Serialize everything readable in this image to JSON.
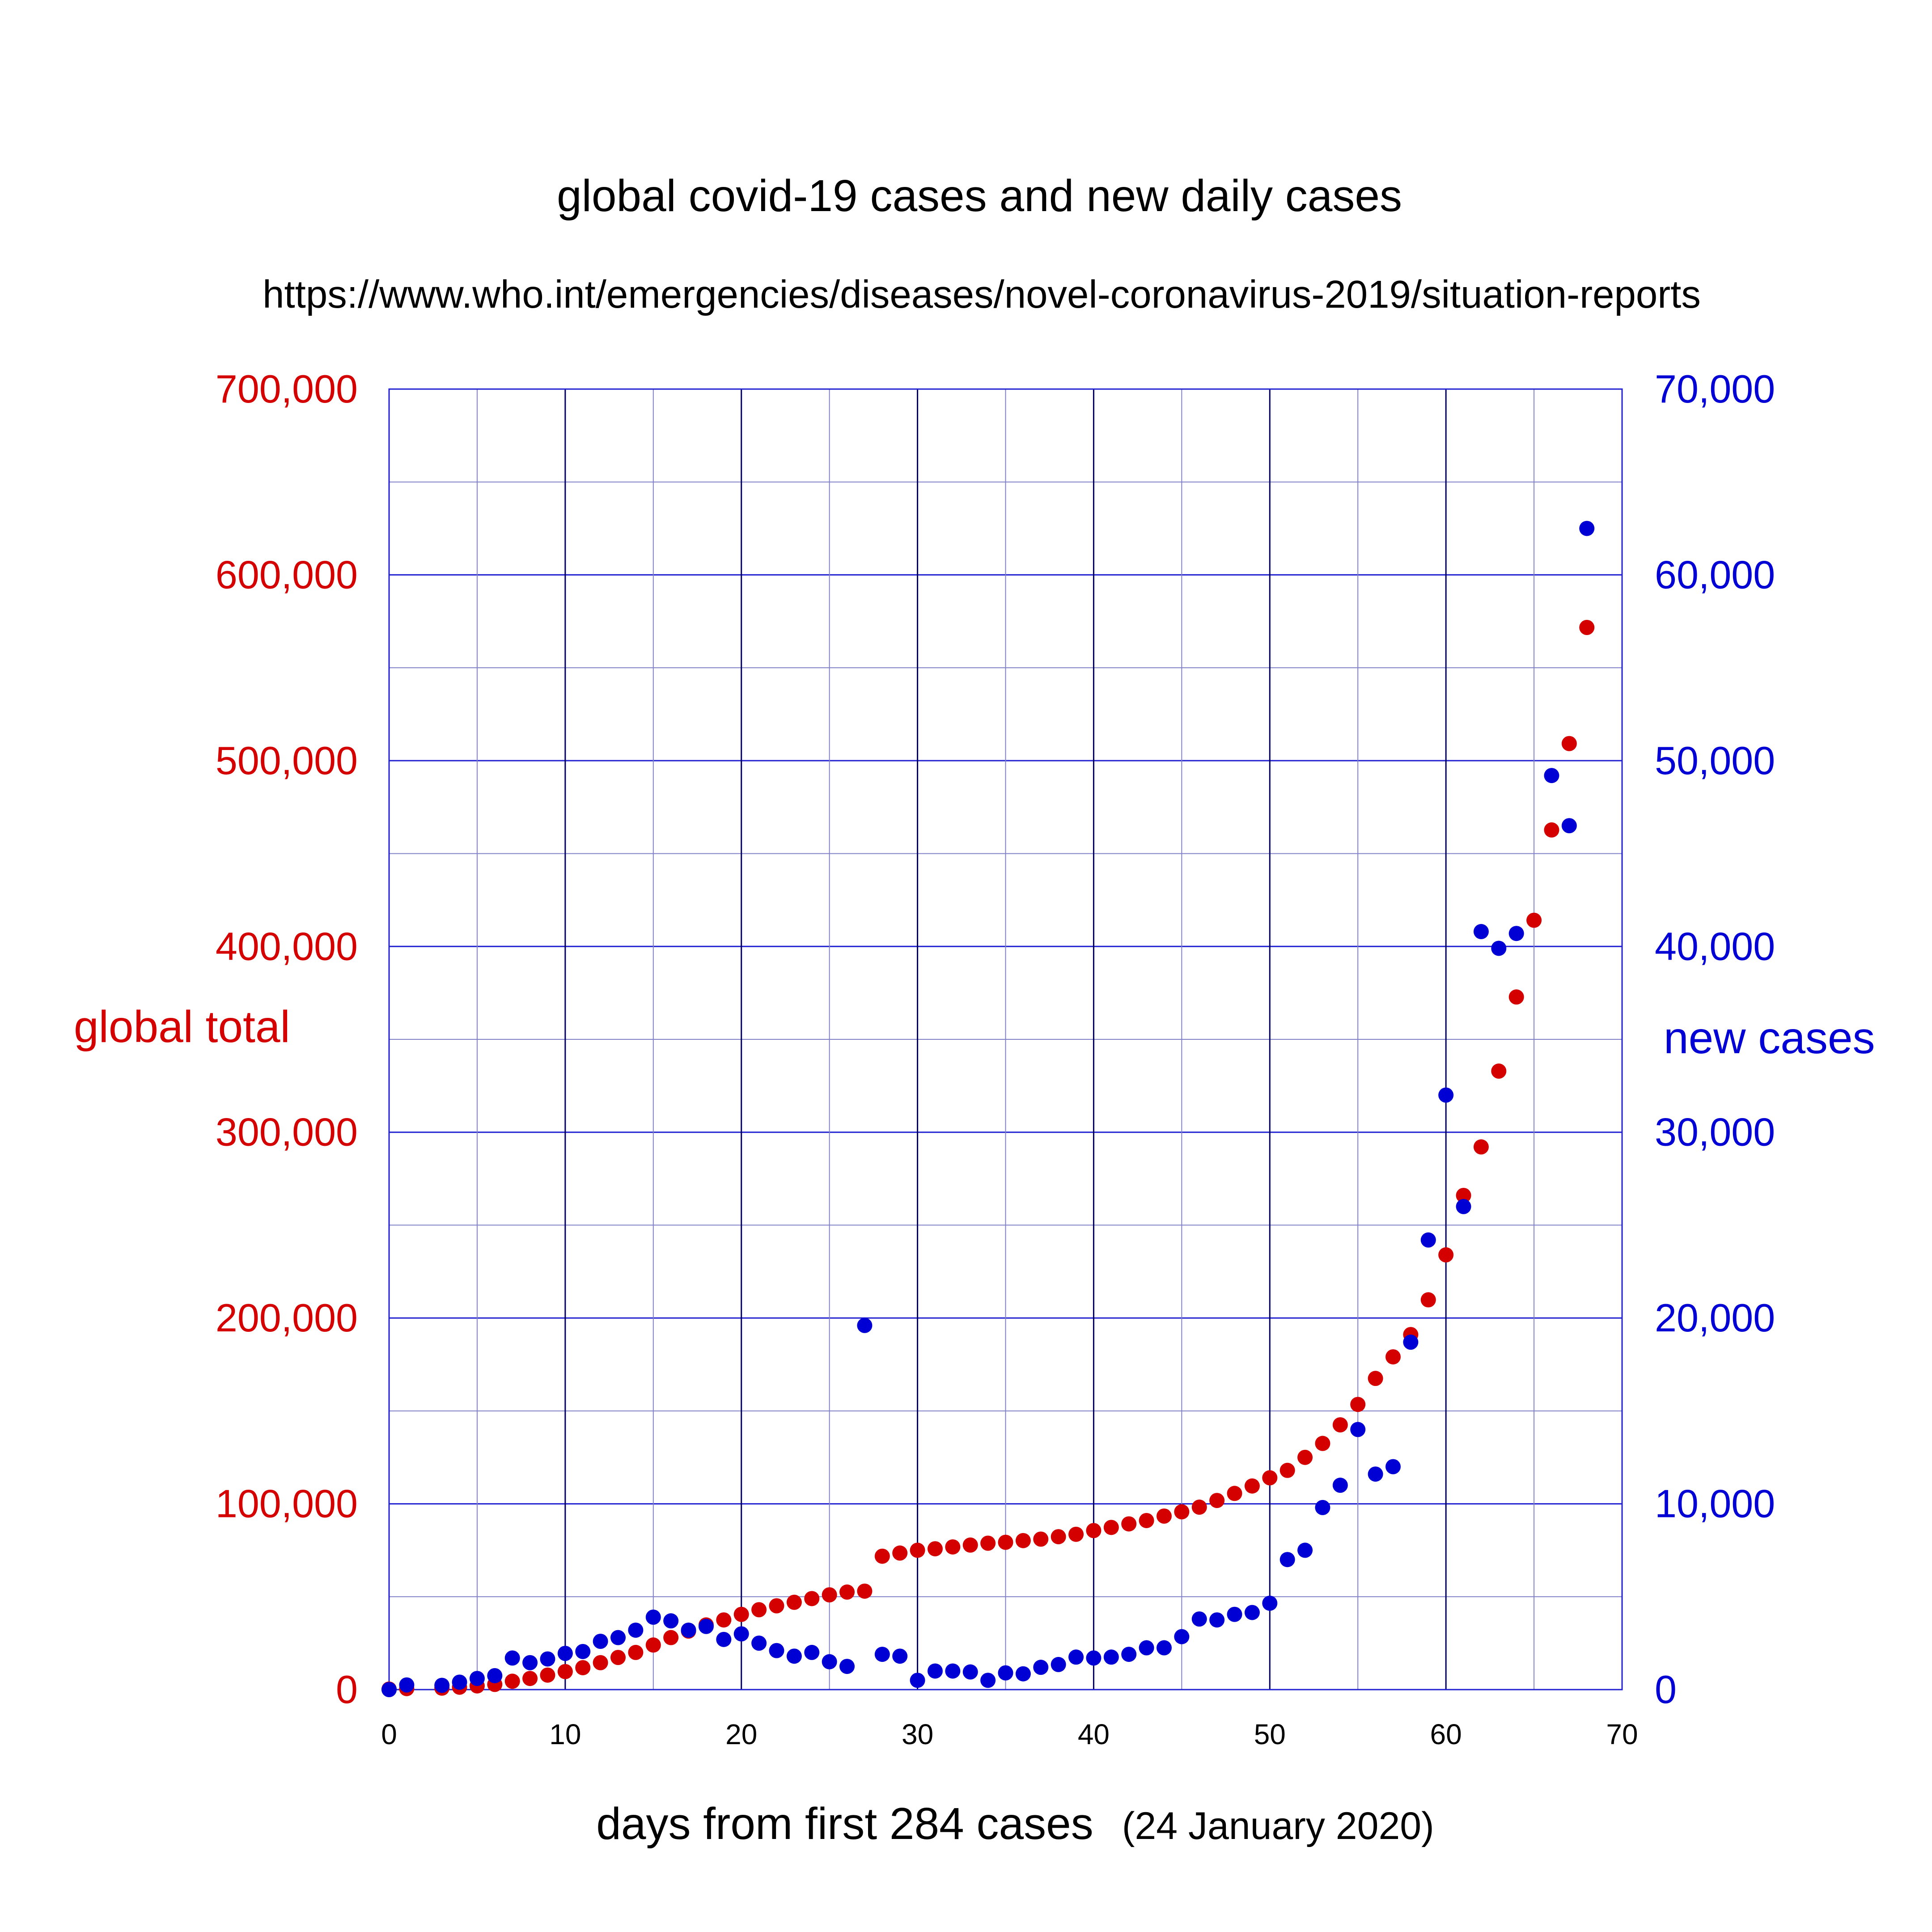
{
  "colors": {
    "total": "#d40000",
    "new": "#0000d4",
    "grid_major": "#000060",
    "grid_minor": "#8080c8",
    "grid_blue": "#2020d0"
  },
  "chart_data": {
    "type": "scatter",
    "title": "global covid-19 cases and new daily cases",
    "subtitle": "https://www.who.int/emergencies/diseases/novel-coronavirus-2019/situation-reports",
    "xlabel": "days from first 284 cases",
    "xlabel_note": "(24 January 2020)",
    "ylabel_left": "global total",
    "ylabel_right": "new  cases",
    "xlim": [
      0,
      70
    ],
    "ylim_left": [
      0,
      700000
    ],
    "ylim_right": [
      0,
      70000
    ],
    "x_ticks": [
      "0",
      "10",
      "20",
      "30",
      "40",
      "50",
      "60",
      "70"
    ],
    "y_ticks_left": [
      "0",
      "100,000",
      "200,000",
      "300,000",
      "400,000",
      "500,000",
      "600,000",
      "700,000"
    ],
    "y_ticks_right": [
      "0",
      "10,000",
      "20,000",
      "30,000",
      "40,000",
      "50,000",
      "60,000",
      "70,000"
    ],
    "grid": true,
    "series": [
      {
        "name": "global total",
        "axis": "left",
        "points": [
          [
            0,
            284
          ],
          [
            1,
            550
          ],
          [
            3,
            800
          ],
          [
            4,
            1300
          ],
          [
            5,
            2000
          ],
          [
            6,
            2800
          ],
          [
            7,
            4500
          ],
          [
            8,
            6000
          ],
          [
            9,
            7800
          ],
          [
            10,
            9700
          ],
          [
            11,
            11800
          ],
          [
            12,
            14500
          ],
          [
            13,
            17300
          ],
          [
            14,
            20000
          ],
          [
            15,
            24000
          ],
          [
            16,
            28000
          ],
          [
            17,
            31500
          ],
          [
            18,
            34800
          ],
          [
            19,
            37500
          ],
          [
            20,
            40500
          ],
          [
            21,
            43000
          ],
          [
            22,
            45100
          ],
          [
            23,
            47000
          ],
          [
            24,
            49000
          ],
          [
            25,
            51000
          ],
          [
            26,
            52500
          ],
          [
            27,
            53000
          ],
          [
            28,
            71800
          ],
          [
            29,
            73500
          ],
          [
            30,
            75000
          ],
          [
            31,
            75800
          ],
          [
            32,
            76800
          ],
          [
            33,
            77800
          ],
          [
            34,
            78800
          ],
          [
            35,
            79300
          ],
          [
            36,
            80200
          ],
          [
            37,
            81000
          ],
          [
            38,
            82300
          ],
          [
            39,
            83600
          ],
          [
            40,
            85600
          ],
          [
            41,
            87300
          ],
          [
            42,
            89200
          ],
          [
            43,
            91000
          ],
          [
            44,
            93400
          ],
          [
            45,
            95700
          ],
          [
            46,
            98200
          ],
          [
            47,
            101800
          ],
          [
            48,
            105600
          ],
          [
            49,
            109600
          ],
          [
            50,
            114000
          ],
          [
            51,
            118000
          ],
          [
            52,
            125000
          ],
          [
            53,
            132500
          ],
          [
            54,
            142500
          ],
          [
            55,
            153500
          ],
          [
            56,
            167500
          ],
          [
            57,
            179100
          ],
          [
            58,
            191100
          ],
          [
            59,
            209800
          ],
          [
            60,
            234000
          ],
          [
            61,
            266000
          ],
          [
            62,
            292100
          ],
          [
            63,
            332900
          ],
          [
            64,
            372800
          ],
          [
            65,
            414100
          ],
          [
            66,
            462700
          ],
          [
            67,
            509200
          ],
          [
            68,
            571700
          ]
        ]
      },
      {
        "name": "new  cases",
        "axis": "right",
        "points": [
          [
            0,
            0
          ],
          [
            1,
            250
          ],
          [
            3,
            230
          ],
          [
            4,
            400
          ],
          [
            5,
            600
          ],
          [
            6,
            750
          ],
          [
            7,
            1700
          ],
          [
            8,
            1450
          ],
          [
            9,
            1650
          ],
          [
            10,
            1950
          ],
          [
            11,
            2050
          ],
          [
            12,
            2600
          ],
          [
            13,
            2800
          ],
          [
            14,
            3200
          ],
          [
            15,
            3900
          ],
          [
            16,
            3700
          ],
          [
            17,
            3200
          ],
          [
            18,
            3400
          ],
          [
            19,
            2700
          ],
          [
            20,
            3000
          ],
          [
            21,
            2500
          ],
          [
            22,
            2100
          ],
          [
            23,
            1800
          ],
          [
            24,
            2000
          ],
          [
            25,
            1500
          ],
          [
            26,
            1250
          ],
          [
            27,
            19600
          ],
          [
            28,
            1900
          ],
          [
            29,
            1800
          ],
          [
            30,
            500
          ],
          [
            31,
            1000
          ],
          [
            32,
            1000
          ],
          [
            33,
            950
          ],
          [
            34,
            500
          ],
          [
            35,
            900
          ],
          [
            36,
            850
          ],
          [
            37,
            1200
          ],
          [
            38,
            1350
          ],
          [
            39,
            1750
          ],
          [
            40,
            1700
          ],
          [
            41,
            1750
          ],
          [
            42,
            1900
          ],
          [
            43,
            2250
          ],
          [
            44,
            2250
          ],
          [
            45,
            2850
          ],
          [
            46,
            3800
          ],
          [
            47,
            3750
          ],
          [
            48,
            4050
          ],
          [
            49,
            4150
          ],
          [
            50,
            4650
          ],
          [
            51,
            7000
          ],
          [
            52,
            7500
          ],
          [
            53,
            9800
          ],
          [
            54,
            11000
          ],
          [
            55,
            14000
          ],
          [
            56,
            11600
          ],
          [
            57,
            12000
          ],
          [
            58,
            18700
          ],
          [
            59,
            24200
          ],
          [
            60,
            32000
          ],
          [
            61,
            26000
          ],
          [
            62,
            40800
          ],
          [
            63,
            39900
          ],
          [
            64,
            40700
          ],
          [
            66,
            49200
          ],
          [
            67,
            46500
          ],
          [
            68,
            62500
          ]
        ]
      }
    ]
  }
}
